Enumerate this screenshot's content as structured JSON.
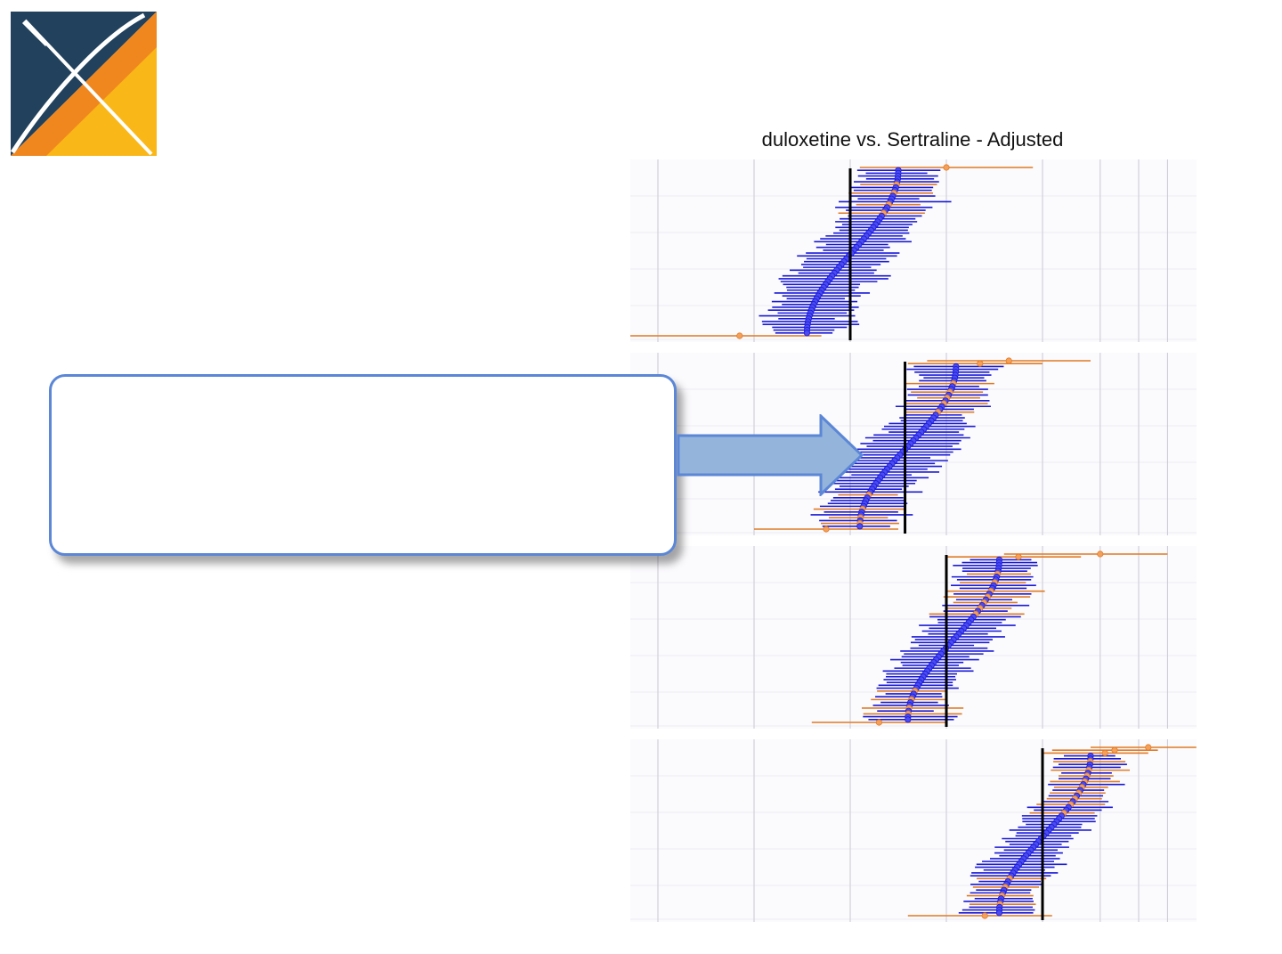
{
  "logo": {
    "name": "x-logo-icon",
    "colors": {
      "dark": "#21415c",
      "orange": "#f0871e",
      "yellow": "#fbbf18",
      "line": "#ffffff"
    }
  },
  "callout": {
    "text": "",
    "border_color": "#5b87d6",
    "arrow_fill": "#94b4db",
    "arrow_stroke": "#5b87d6"
  },
  "chart_data": {
    "type": "forest",
    "title": "duloxetine vs. Sertraline - Adjusted",
    "xlabel": "",
    "ylabel": "",
    "colors": {
      "not_significant": "#1a1ad6",
      "significant": "#e07a24",
      "reference": "#000000",
      "grid": "#c8c8d4"
    },
    "vertical_gridlines": [
      -2.0,
      -1.0,
      0.0,
      1.0,
      2.0,
      2.6,
      3.0,
      3.3
    ],
    "x_range": [
      -2.3,
      3.6
    ],
    "panels": [
      {
        "name": "panel-1",
        "reference_line": 0.0,
        "n": 60,
        "estimate_range": [
          -0.45,
          0.5
        ],
        "ci_half_width_range": [
          0.18,
          0.55
        ],
        "extremes": [
          {
            "estimate": 1.0,
            "lower": 0.1,
            "upper": 1.9,
            "significant": true
          },
          {
            "estimate": -1.15,
            "lower": -2.3,
            "upper": -0.3,
            "significant": true
          }
        ],
        "significant_ranks": [
          6,
          9,
          13,
          16
        ]
      },
      {
        "name": "panel-2",
        "reference_line": 0.57,
        "n": 60,
        "estimate_range": [
          0.1,
          1.1
        ],
        "ci_half_width_range": [
          0.18,
          0.55
        ],
        "extremes": [
          {
            "estimate": 1.65,
            "lower": 0.8,
            "upper": 2.5,
            "significant": true
          },
          {
            "estimate": 1.35,
            "lower": 0.6,
            "upper": 2.0,
            "significant": true
          },
          {
            "estimate": -0.25,
            "lower": -1.0,
            "upper": 0.5,
            "significant": true
          }
        ],
        "significant_ranks": [
          8,
          11,
          13,
          15,
          18,
          47,
          52,
          55,
          57
        ]
      },
      {
        "name": "panel-3",
        "reference_line": 1.0,
        "n": 60,
        "estimate_range": [
          0.6,
          1.55
        ],
        "ci_half_width_range": [
          0.18,
          0.5
        ],
        "extremes": [
          {
            "estimate": 2.6,
            "lower": 1.6,
            "upper": 3.3,
            "significant": true
          },
          {
            "estimate": 1.75,
            "lower": 1.0,
            "upper": 2.4,
            "significant": true
          },
          {
            "estimate": 0.3,
            "lower": -0.4,
            "upper": 1.0,
            "significant": true
          }
        ],
        "significant_ranks": [
          7,
          10,
          13,
          15,
          17,
          19,
          21,
          48,
          51,
          54,
          56
        ]
      },
      {
        "name": "panel-4",
        "reference_line": 2.0,
        "n": 60,
        "estimate_range": [
          1.55,
          2.5
        ],
        "ci_half_width_range": [
          0.18,
          0.45
        ],
        "extremes": [
          {
            "estimate": 3.1,
            "lower": 2.5,
            "upper": 3.6,
            "significant": true
          },
          {
            "estimate": 2.75,
            "lower": 2.1,
            "upper": 3.2,
            "significant": true
          },
          {
            "estimate": 2.65,
            "lower": 2.0,
            "upper": 3.1,
            "significant": true
          },
          {
            "estimate": 1.4,
            "lower": 0.6,
            "upper": 2.1,
            "significant": true
          }
        ],
        "significant_ranks": [
          5,
          8,
          10,
          12,
          14,
          16,
          18,
          20,
          23,
          46,
          49,
          52,
          55
        ]
      }
    ]
  }
}
